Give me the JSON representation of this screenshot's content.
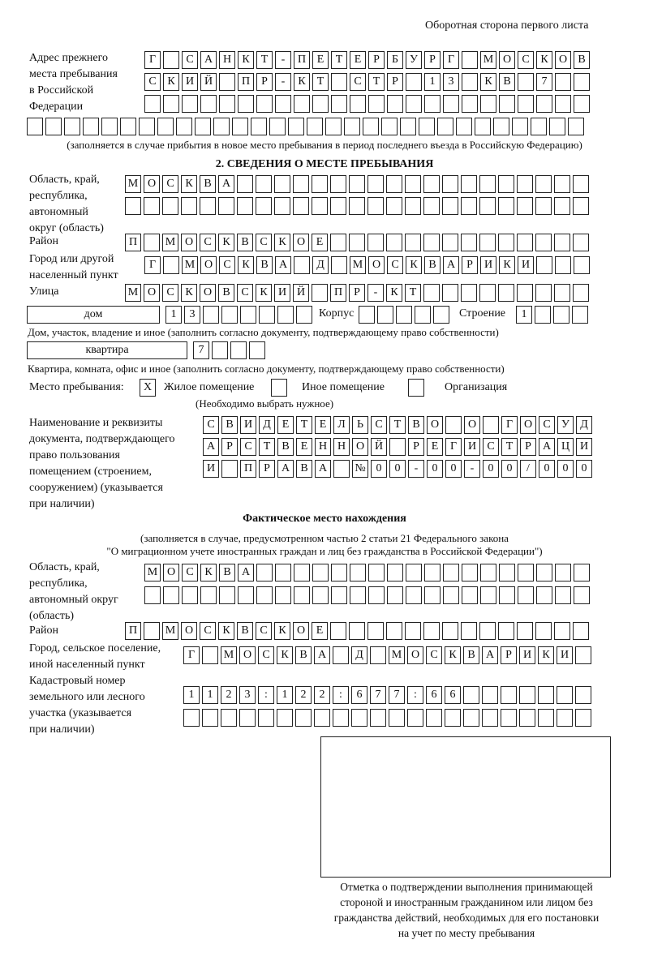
{
  "header": {
    "side_note": "Оборотная сторона первого листа"
  },
  "previous_address": {
    "label": "Адрес прежнего\nместа пребывания\nв Российской\nФедерации",
    "rows": [
      [
        "Г",
        "",
        "С",
        "А",
        "Н",
        "К",
        "Т",
        "-",
        "П",
        "Е",
        "Т",
        "Е",
        "Р",
        "Б",
        "У",
        "Р",
        "Г",
        "",
        "М",
        "О",
        "С",
        "К",
        "О",
        "В"
      ],
      [
        "С",
        "К",
        "И",
        "Й",
        "",
        "П",
        "Р",
        "-",
        "К",
        "Т",
        "",
        "С",
        "Т",
        "Р",
        "",
        "1",
        "3",
        "",
        "К",
        "В",
        "",
        "7",
        "",
        ""
      ],
      [
        "",
        "",
        "",
        "",
        "",
        "",
        "",
        "",
        "",
        "",
        "",
        "",
        "",
        "",
        "",
        "",
        "",
        "",
        "",
        "",
        "",
        "",
        "",
        ""
      ],
      [
        "",
        "",
        "",
        "",
        "",
        "",
        "",
        "",
        "",
        "",
        "",
        "",
        "",
        "",
        "",
        "",
        "",
        "",
        "",
        "",
        "",
        "",
        "",
        "",
        "",
        "",
        "",
        "",
        "",
        ""
      ]
    ],
    "note": "(заполняется в случае прибытия в новое место пребывания в период последнего въезда в Российскую Федерацию)"
  },
  "section2": {
    "title": "2. СВЕДЕНИЯ О МЕСТЕ ПРЕБЫВАНИЯ",
    "region_label": "Область, край,\nреспублика,\nавтономный\nокруг (область)",
    "region_rows": [
      [
        "М",
        "О",
        "С",
        "К",
        "В",
        "А",
        "",
        "",
        "",
        "",
        "",
        "",
        "",
        "",
        "",
        "",
        "",
        "",
        "",
        "",
        "",
        "",
        "",
        "",
        ""
      ],
      [
        "",
        "",
        "",
        "",
        "",
        "",
        "",
        "",
        "",
        "",
        "",
        "",
        "",
        "",
        "",
        "",
        "",
        "",
        "",
        "",
        "",
        "",
        "",
        "",
        ""
      ]
    ],
    "district_label": "Район",
    "district": [
      "П",
      "",
      "М",
      "О",
      "С",
      "К",
      "В",
      "С",
      "К",
      "О",
      "Е",
      "",
      "",
      "",
      "",
      "",
      "",
      "",
      "",
      "",
      "",
      "",
      "",
      "",
      ""
    ],
    "city_label": "Город или другой\nнаселенный пункт",
    "city": [
      "Г",
      "",
      "М",
      "О",
      "С",
      "К",
      "В",
      "А",
      "",
      "Д",
      "",
      "М",
      "О",
      "С",
      "К",
      "В",
      "А",
      "Р",
      "И",
      "К",
      "И",
      "",
      "",
      ""
    ],
    "street_label": "Улица",
    "street": [
      "М",
      "О",
      "С",
      "К",
      "О",
      "В",
      "С",
      "К",
      "И",
      "Й",
      "",
      "П",
      "Р",
      "-",
      "К",
      "Т",
      "",
      "",
      "",
      "",
      "",
      "",
      "",
      "",
      ""
    ],
    "house_type": "дом",
    "house": [
      "1",
      "3",
      "",
      "",
      "",
      "",
      "",
      ""
    ],
    "korpus_label": "Корпус",
    "korpus": [
      "",
      "",
      "",
      "",
      ""
    ],
    "building_label": "Строение",
    "building": [
      "1",
      "",
      "",
      ""
    ],
    "house_note": "Дом, участок, владение и иное (заполнить согласно документу, подтверждающему право собственности)",
    "flat_type": "квартира",
    "flat": [
      "7",
      "",
      "",
      ""
    ],
    "flat_note": "Квартира, комната, офис и иное (заполнить согласно документу, подтверждающему право собственности)",
    "stay_label": "Место пребывания:",
    "options": [
      {
        "label": "Жилое помещение",
        "mark": "X"
      },
      {
        "label": "Иное помещение",
        "mark": ""
      },
      {
        "label": "Организация",
        "mark": ""
      }
    ],
    "choose_note": "(Необходимо выбрать нужное)",
    "doc_label": "Наименование и реквизиты\nдокумента, подтверждающего\nправо пользования\nпомещением (строением,\nсооружением) (указывается\nпри наличии)",
    "doc_rows": [
      [
        "С",
        "В",
        "И",
        "Д",
        "Е",
        "Т",
        "Е",
        "Л",
        "Ь",
        "С",
        "Т",
        "В",
        "О",
        "",
        "О",
        "",
        "Г",
        "О",
        "С",
        "У",
        "Д"
      ],
      [
        "А",
        "Р",
        "С",
        "Т",
        "В",
        "Е",
        "Н",
        "Н",
        "О",
        "Й",
        "",
        "Р",
        "Е",
        "Г",
        "И",
        "С",
        "Т",
        "Р",
        "А",
        "Ц",
        "И"
      ],
      [
        "И",
        "",
        "П",
        "Р",
        "А",
        "В",
        "А",
        "",
        "№",
        "0",
        "0",
        "-",
        "0",
        "0",
        "-",
        "0",
        "0",
        "/",
        "0",
        "0",
        "0"
      ]
    ]
  },
  "actual": {
    "title": "Фактическое место нахождения",
    "note1": "(заполняется в случае, предусмотренном частью 2 статьи 21 Федерального закона",
    "note2": "\"О миграционном учете иностранных граждан и лиц без гражданства в Российской Федерации\")",
    "region_label": "Область, край,\nреспублика,\nавтономный округ\n(область)",
    "region_rows": [
      [
        "М",
        "О",
        "С",
        "К",
        "В",
        "А",
        "",
        "",
        "",
        "",
        "",
        "",
        "",
        "",
        "",
        "",
        "",
        "",
        "",
        "",
        "",
        "",
        "",
        ""
      ],
      [
        "",
        "",
        "",
        "",
        "",
        "",
        "",
        "",
        "",
        "",
        "",
        "",
        "",
        "",
        "",
        "",
        "",
        "",
        "",
        "",
        "",
        "",
        "",
        ""
      ]
    ],
    "district_label": "Район",
    "district": [
      "П",
      "",
      "М",
      "О",
      "С",
      "К",
      "В",
      "С",
      "К",
      "О",
      "Е",
      "",
      "",
      "",
      "",
      "",
      "",
      "",
      "",
      "",
      "",
      "",
      "",
      "",
      ""
    ],
    "city_label": "Город, сельское поселение,\nиной населенный пункт",
    "city": [
      "Г",
      "",
      "М",
      "О",
      "С",
      "К",
      "В",
      "А",
      "",
      "Д",
      "",
      "М",
      "О",
      "С",
      "К",
      "В",
      "А",
      "Р",
      "И",
      "К",
      "И",
      ""
    ],
    "cadastre_label": "Кадастровый номер\nземельного или лесного\nучастка (указывается\nпри наличии)",
    "cadastre_rows": [
      [
        "1",
        "1",
        "2",
        "3",
        ":",
        "1",
        "2",
        "2",
        ":",
        "6",
        "7",
        "7",
        ":",
        "6",
        "6",
        "",
        "",
        "",
        "",
        "",
        "",
        ""
      ],
      [
        "",
        "",
        "",
        "",
        "",
        "",
        "",
        "",
        "",
        "",
        "",
        "",
        "",
        "",
        "",
        "",
        "",
        "",
        "",
        "",
        "",
        ""
      ]
    ]
  },
  "stamp": {
    "caption": "Отметка о подтверждении выполнения принимающей\nстороной и иностранным гражданином или лицом без\nгражданства действий, необходимых для его постановки\nна учет по месту пребывания"
  }
}
